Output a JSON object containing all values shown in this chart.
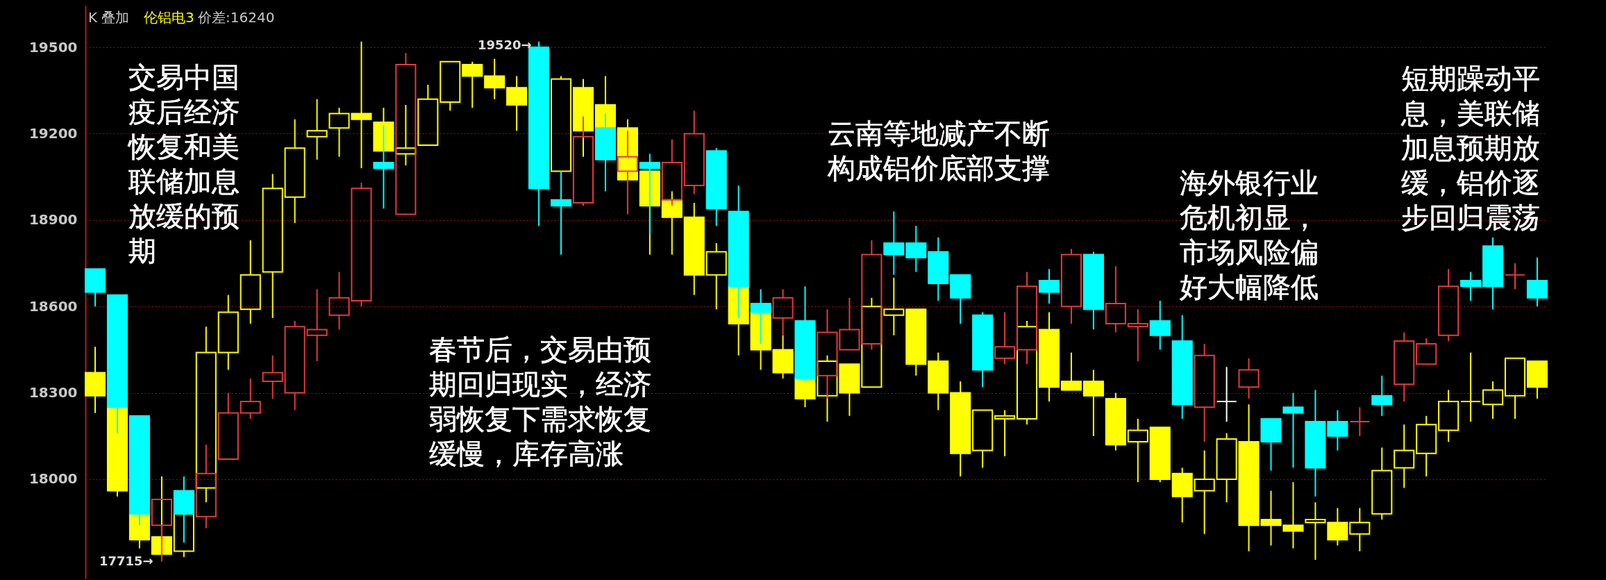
{
  "chart_data": {
    "type": "candlestick",
    "title": "K 叠加",
    "categories": [
      null,
      null,
      null,
      null,
      null,
      null,
      null,
      null,
      null,
      null,
      null,
      null,
      null,
      null,
      null,
      null,
      null,
      null,
      null,
      null,
      null,
      null,
      null,
      null,
      null,
      null,
      null,
      null,
      null,
      null,
      null,
      null,
      null,
      null,
      null,
      null,
      null,
      null,
      null,
      null,
      null,
      null,
      null,
      null,
      null,
      null,
      null,
      null,
      null,
      null,
      null,
      null,
      null,
      null,
      null,
      null,
      null,
      null,
      null,
      null,
      null,
      null,
      null,
      null,
      null,
      null
    ],
    "tick_labels": "y",
    "ylim": [
      17655,
      19645
    ],
    "yticks": [
      18000,
      18300,
      18600,
      18900,
      19200,
      19500
    ],
    "grid": "y",
    "legend": "top left",
    "series": [
      {
        "ohlc": [
          [
            18730,
            18730,
            18600,
            18650
          ],
          [
            18640,
            18640,
            18160,
            18250
          ],
          [
            18220,
            18220,
            17840,
            17880
          ],
          [
            17840,
            17930,
            17715,
            17930
          ],
          [
            17960,
            18010,
            17780,
            17880
          ],
          [
            17870,
            18120,
            17830,
            18020
          ],
          [
            18070,
            18300,
            18070,
            18230
          ],
          [
            18230,
            18350,
            18210,
            18270
          ],
          [
            18340,
            18430,
            18280,
            18370
          ],
          [
            18300,
            18550,
            18240,
            18530
          ],
          [
            18500,
            18660,
            18410,
            18520
          ],
          [
            18570,
            18720,
            18520,
            18630
          ],
          [
            18620,
            19030,
            18600,
            19010
          ],
          [
            19100,
            19230,
            18940,
            19080
          ],
          [
            18920,
            19480,
            18920,
            19440
          ],
          null,
          null,
          null,
          null,
          null,
          [
            19500,
            19520,
            18880,
            19010
          ],
          [
            18970,
            19070,
            18780,
            18950
          ],
          [
            18960,
            19260,
            18950,
            19190
          ],
          [
            19220,
            19270,
            19000,
            19110
          ],
          [
            19070,
            19210,
            18920,
            19120
          ],
          [
            19100,
            19130,
            18850,
            19080
          ],
          [
            18970,
            19180,
            18950,
            19100
          ],
          [
            19020,
            19280,
            18990,
            19200
          ],
          [
            19140,
            19150,
            18880,
            18940
          ],
          [
            18930,
            19020,
            18560,
            18670
          ],
          [
            18610,
            18660,
            18470,
            18580
          ],
          [
            18560,
            18660,
            18500,
            18630
          ],
          [
            18550,
            18670,
            18340,
            18350
          ],
          [
            18360,
            18590,
            18280,
            18510
          ],
          [
            18450,
            18630,
            18450,
            18520
          ],
          [
            18470,
            18830,
            18450,
            18780
          ],
          [
            18820,
            18930,
            18710,
            18780
          ],
          [
            18820,
            18880,
            18720,
            18770
          ],
          [
            18790,
            18840,
            18620,
            18680
          ],
          [
            18710,
            18710,
            18540,
            18630
          ],
          [
            18570,
            18580,
            18320,
            18380
          ],
          [
            18420,
            18580,
            18400,
            18460
          ],
          [
            18450,
            18720,
            18400,
            18670
          ],
          [
            18690,
            18730,
            18610,
            18650
          ],
          [
            18600,
            18800,
            18540,
            18780
          ],
          [
            18780,
            18790,
            18520,
            18590
          ],
          [
            18540,
            18740,
            18510,
            18610
          ],
          [
            18530,
            18590,
            18410,
            18540
          ],
          [
            18550,
            18620,
            18450,
            18500
          ],
          [
            18480,
            18570,
            18210,
            18260
          ],
          [
            18250,
            18470,
            18130,
            18430
          ],
          [
            18270,
            18390,
            18200,
            18270
          ],
          [
            18320,
            18420,
            18280,
            18380
          ],
          [
            18210,
            18210,
            18030,
            18130
          ],
          [
            18250,
            18300,
            18040,
            18230
          ],
          [
            18200,
            18310,
            17940,
            18040
          ],
          [
            18200,
            18240,
            18100,
            18150
          ],
          [
            18200,
            18250,
            18150,
            18200
          ],
          [
            18290,
            18360,
            18220,
            18260
          ],
          [
            18330,
            18510,
            18270,
            18480
          ],
          [
            18400,
            18490,
            18400,
            18470
          ],
          [
            18500,
            18730,
            18480,
            18670
          ],
          [
            18690,
            18720,
            18620,
            18670
          ],
          [
            18810,
            18840,
            18590,
            18670
          ],
          [
            18710,
            18750,
            18660,
            18710
          ],
          [
            18690,
            18770,
            18600,
            18630
          ]
        ],
        "colors": [
          "#00ffff",
          "#00ffff",
          "#00ffff",
          "#e8383d",
          "#00ffff",
          "#e8383d",
          "#e8383d",
          "#e8383d",
          "#e8383d",
          "#e8383d",
          "#e8383d",
          "#e8383d",
          "#e8383d",
          "#00ffff",
          "#e8383d",
          null,
          null,
          null,
          null,
          null,
          "#00ffff",
          "#00ffff",
          "#e8383d",
          "#00ffff",
          "#e8383d",
          "#00ffff",
          "#e8383d",
          "#e8383d",
          "#00ffff",
          "#00ffff",
          "#00ffff",
          "#e8383d",
          "#00ffff",
          "#e8383d",
          "#e8383d",
          "#e8383d",
          "#00ffff",
          "#00ffff",
          "#00ffff",
          "#00ffff",
          "#00ffff",
          "#e8383d",
          "#e8383d",
          "#00ffff",
          "#e8383d",
          "#00ffff",
          "#e8383d",
          "#e8383d",
          "#00ffff",
          "#00ffff",
          "#e8383d",
          "#ffffff",
          "#e8383d",
          "#00ffff",
          "#00ffff",
          "#00ffff",
          "#00ffff",
          "#e8383d",
          "#00ffff",
          "#e8383d",
          "#e8383d",
          "#e8383d",
          "#00ffff",
          "#00ffff",
          "#e8383d",
          "#00ffff"
        ]
      },
      {
        "name": "伦铝电3",
        "color": "#ffff00",
        "ohlc": [
          [
            18370,
            18460,
            18230,
            18290
          ],
          [
            18250,
            18250,
            17940,
            17960
          ],
          [
            17880,
            17880,
            17760,
            17790
          ],
          [
            17800,
            18010,
            17740,
            17740
          ],
          [
            17750,
            17880,
            17730,
            17880
          ],
          [
            17970,
            18530,
            17920,
            18440
          ],
          [
            18440,
            18640,
            18380,
            18580
          ],
          [
            18590,
            18830,
            18540,
            18710
          ],
          [
            18720,
            19060,
            18560,
            19010
          ],
          [
            18980,
            19250,
            18890,
            19150
          ],
          [
            19190,
            19320,
            19110,
            19210
          ],
          [
            19220,
            19290,
            19120,
            19270
          ],
          [
            19270,
            19520,
            19080,
            19250
          ],
          [
            19240,
            19290,
            19140,
            19140
          ],
          [
            19130,
            19300,
            19090,
            19150
          ],
          [
            19160,
            19370,
            19160,
            19320
          ],
          [
            19310,
            19450,
            19280,
            19450
          ],
          [
            19440,
            19450,
            19290,
            19400
          ],
          [
            19400,
            19460,
            19320,
            19360
          ],
          [
            19360,
            19400,
            19210,
            19300
          ],
          null,
          [
            19070,
            19400,
            19070,
            19390
          ],
          [
            19360,
            19390,
            19120,
            19210
          ],
          [
            19300,
            19400,
            19220,
            19220
          ],
          [
            19220,
            19250,
            19040,
            19040
          ],
          [
            19070,
            19070,
            18780,
            18950
          ],
          [
            18970,
            19000,
            18780,
            18910
          ],
          [
            18910,
            18960,
            18640,
            18710
          ],
          [
            18710,
            18820,
            18590,
            18790
          ],
          [
            18670,
            18670,
            18430,
            18540
          ],
          [
            18580,
            18580,
            18380,
            18450
          ],
          [
            18450,
            18500,
            18350,
            18370
          ],
          [
            18350,
            18350,
            18250,
            18280
          ],
          [
            18290,
            18430,
            18200,
            18410
          ],
          [
            18400,
            18400,
            18220,
            18300
          ],
          [
            18320,
            18630,
            18320,
            18600
          ],
          [
            18570,
            18700,
            18500,
            18590
          ],
          [
            18590,
            18590,
            18360,
            18400
          ],
          [
            18410,
            18440,
            18240,
            18300
          ],
          [
            18300,
            18340,
            18010,
            18090
          ],
          [
            18100,
            18240,
            18040,
            18240
          ],
          [
            18210,
            18240,
            18080,
            18220
          ],
          [
            18210,
            18550,
            18190,
            18530
          ],
          [
            18520,
            18580,
            18270,
            18320
          ],
          [
            18340,
            18440,
            18310,
            18310
          ],
          [
            18340,
            18380,
            18150,
            18290
          ],
          [
            18280,
            18300,
            18100,
            18120
          ],
          [
            18130,
            18210,
            17990,
            18170
          ],
          [
            18180,
            18180,
            17990,
            18000
          ],
          [
            18020,
            18040,
            17850,
            17940
          ],
          [
            17960,
            18100,
            17810,
            18000
          ],
          [
            18000,
            18160,
            17920,
            18140
          ],
          [
            18130,
            18260,
            17750,
            17840
          ],
          [
            17860,
            17960,
            17770,
            17840
          ],
          [
            17840,
            17990,
            17760,
            17820
          ],
          [
            17850,
            17920,
            17720,
            17860
          ],
          [
            17850,
            17900,
            17770,
            17790
          ],
          [
            17810,
            17900,
            17750,
            17850
          ],
          [
            17880,
            18110,
            17860,
            18030
          ],
          [
            18040,
            18190,
            17970,
            18100
          ],
          [
            18090,
            18220,
            18010,
            18190
          ],
          [
            18170,
            18310,
            18130,
            18270
          ],
          [
            18270,
            18440,
            18200,
            18270
          ],
          [
            18260,
            18340,
            18210,
            18310
          ],
          [
            18290,
            18420,
            18210,
            18420
          ],
          [
            18410,
            18410,
            18280,
            18320
          ]
        ]
      }
    ],
    "annotations": [
      "价差:16240",
      "交易中国疫后经济恢复和美联储加息放缓的预期",
      "春节后，交易由预期回归现实，经济弱恢复下需求恢复缓慢，库存高涨",
      "云南等地减产不断构成铝价底部支撑",
      "海外银行业危机初显，市场风险偏好大幅降低",
      "短期躁动平息，美联储加息预期放缓，铝价逐步回归震荡",
      "19520→",
      "17715→"
    ]
  }
}
